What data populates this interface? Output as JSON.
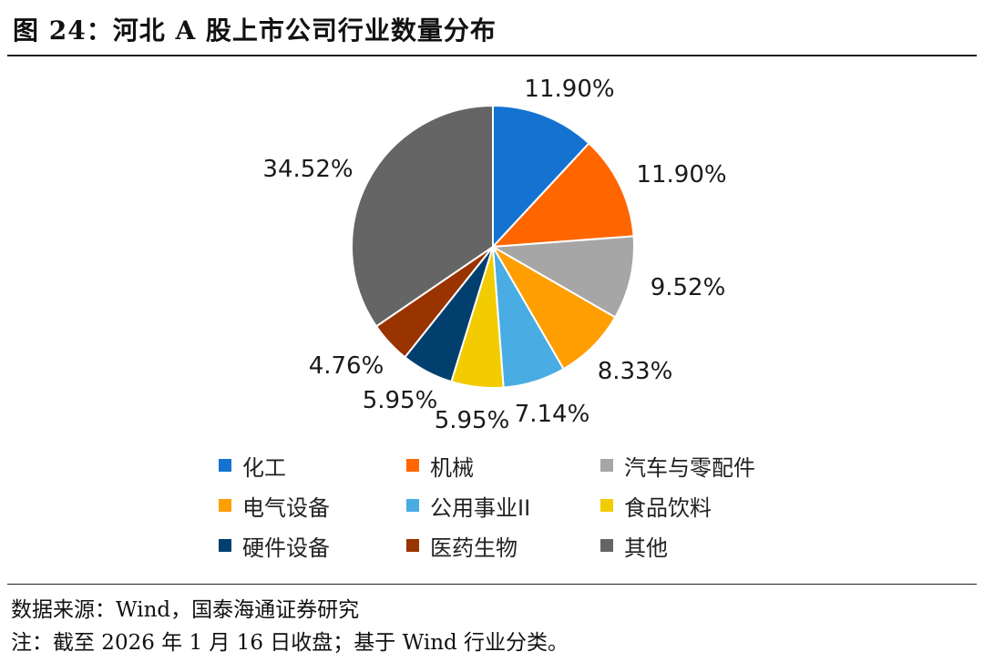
{
  "figure": {
    "title": "图 24：河北 A 股上市公司行业数量分布"
  },
  "chart_data": {
    "type": "pie",
    "title": "",
    "unit": "%",
    "slices": [
      {
        "name": "化工",
        "value": 11.9,
        "label": "11.90%",
        "color": "#1473D1"
      },
      {
        "name": "机械",
        "value": 11.9,
        "label": "11.90%",
        "color": "#FF6600"
      },
      {
        "name": "汽车与零配件",
        "value": 9.52,
        "label": "9.52%",
        "color": "#A6A6A6"
      },
      {
        "name": "电气设备",
        "value": 8.33,
        "label": "8.33%",
        "color": "#FF9E00"
      },
      {
        "name": "公用事业II",
        "value": 7.14,
        "label": "7.14%",
        "color": "#49ACE3"
      },
      {
        "name": "食品饮料",
        "value": 5.95,
        "label": "5.95%",
        "color": "#F2CC00"
      },
      {
        "name": "硬件设备",
        "value": 5.95,
        "label": "5.95%",
        "color": "#003F6E"
      },
      {
        "name": "医药生物",
        "value": 4.76,
        "label": "4.76%",
        "color": "#993300"
      },
      {
        "name": "其他",
        "value": 34.52,
        "label": "34.52%",
        "color": "#656565"
      }
    ],
    "legend": {
      "position": "bottom",
      "items": [
        "化工",
        "机械",
        "汽车与零配件",
        "电气设备",
        "公用事业II",
        "食品饮料",
        "硬件设备",
        "医药生物",
        "其他"
      ]
    }
  },
  "notes": {
    "source": "数据来源：Wind，国泰海通证券研究",
    "remark": "注：截至 2026 年 1 月 16 日收盘；基于 Wind 行业分类。"
  }
}
